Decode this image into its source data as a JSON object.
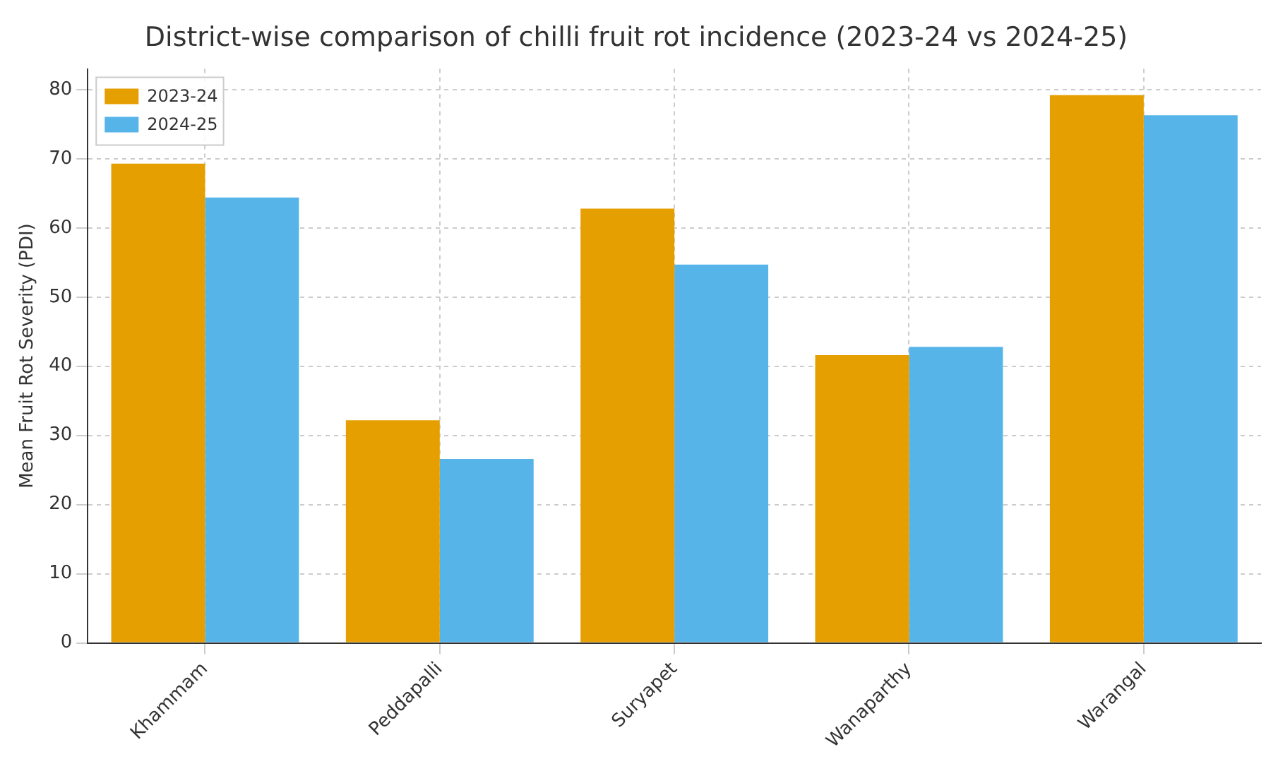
{
  "chart_data": {
    "type": "bar",
    "title": "District-wise comparison of chilli fruit rot incidence (2023-24 vs 2024-25)",
    "ylabel": "Mean Fruit Rot Severity (PDI)",
    "categories": [
      "Khammam",
      "Peddapalli",
      "Suryapet",
      "Wanaparthy",
      "Warangal"
    ],
    "series": [
      {
        "name": "2023-24",
        "color": "#e69f00",
        "values": [
          69.3,
          32.2,
          62.8,
          41.6,
          79.2
        ]
      },
      {
        "name": "2024-25",
        "color": "#56b4e9",
        "values": [
          64.4,
          26.6,
          54.7,
          42.8,
          76.3
        ]
      }
    ],
    "ylim": [
      0,
      83
    ],
    "yticks": [
      0,
      10,
      20,
      30,
      40,
      50,
      60,
      70,
      80
    ],
    "grid": true,
    "legend": "top left"
  }
}
